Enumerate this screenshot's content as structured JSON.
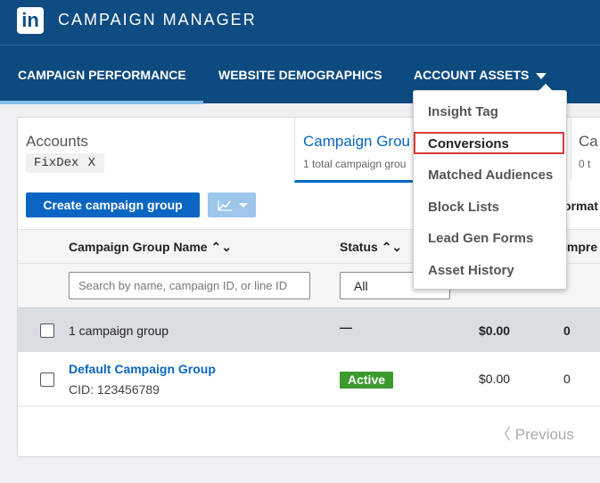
{
  "header": {
    "logo": "in",
    "title": "CAMPAIGN MANAGER"
  },
  "nav": {
    "items": [
      {
        "label": "CAMPAIGN PERFORMANCE"
      },
      {
        "label": "WEBSITE DEMOGRAPHICS"
      },
      {
        "label": "ACCOUNT ASSETS"
      }
    ]
  },
  "accounts": {
    "label": "Accounts",
    "chip": "FixDex",
    "chip_remove": "X"
  },
  "tabs": {
    "campaign_group": {
      "title": "Campaign Grou",
      "subtitle": "1 total campaign grou"
    },
    "campaigns": {
      "title": "Ca",
      "subtitle": "0 t"
    }
  },
  "toolbar": {
    "create_label": "Create campaign group",
    "format_label": "ormat"
  },
  "table": {
    "headers": {
      "name": "Campaign Group Name",
      "status": "Status",
      "impressions": "Impre"
    },
    "filters": {
      "search_placeholder": "Search by name, campaign ID, or line ID",
      "status_value": "All"
    },
    "summary": {
      "label": "1 campaign group",
      "status": "—",
      "spend": "$0.00",
      "impressions": "0"
    },
    "rows": [
      {
        "name": "Default Campaign Group",
        "cid": "CID: 123456789",
        "status": "Active",
        "spend": "$0.00",
        "impressions": "0"
      }
    ]
  },
  "pagination": {
    "previous": "Previous"
  },
  "dropdown": {
    "items": [
      "Insight Tag",
      "Conversions",
      "Matched Audiences",
      "Block Lists",
      "Lead Gen Forms",
      "Asset History"
    ],
    "highlighted": "Conversions"
  },
  "colors": {
    "brand": "#0f4c81",
    "accent": "#0a66c2",
    "active": "#3a9b2c",
    "highlight": "#d83a3a"
  }
}
